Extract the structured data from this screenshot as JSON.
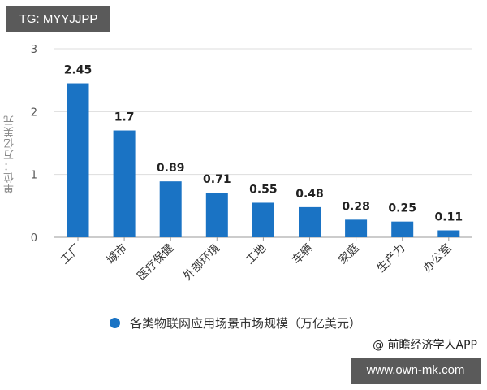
{
  "badges": {
    "top_left": "TG: MYYJJPP",
    "bottom_right": "www.own-mk.com"
  },
  "credit": "@ 前瞻经济学人APP",
  "colors": {
    "bar": "#1a73c4",
    "grid": "#dddddd",
    "axis": "#999999"
  },
  "chart_data": {
    "type": "bar",
    "title": "",
    "categories": [
      "工厂",
      "城市",
      "医疗保健",
      "外部环境",
      "工地",
      "车辆",
      "家庭",
      "生产力",
      "办公室"
    ],
    "values": [
      2.45,
      1.7,
      0.89,
      0.71,
      0.55,
      0.48,
      0.28,
      0.25,
      0.11
    ],
    "value_labels": [
      "2.45",
      "1.7",
      "0.89",
      "0.71",
      "0.55",
      "0.48",
      "0.28",
      "0.25",
      "0.11"
    ],
    "series": [
      {
        "name": "各类物联网应用场景市场规模（万亿美元）",
        "values": [
          2.45,
          1.7,
          0.89,
          0.71,
          0.55,
          0.48,
          0.28,
          0.25,
          0.11
        ]
      }
    ],
    "xlabel": "",
    "ylabel": "单位：万亿美元",
    "ylim": [
      0,
      3
    ],
    "yticks": [
      0,
      1,
      2,
      3
    ],
    "grid": true,
    "legend_position": "bottom",
    "legend": [
      "各类物联网应用场景市场规模（万亿美元）"
    ]
  }
}
